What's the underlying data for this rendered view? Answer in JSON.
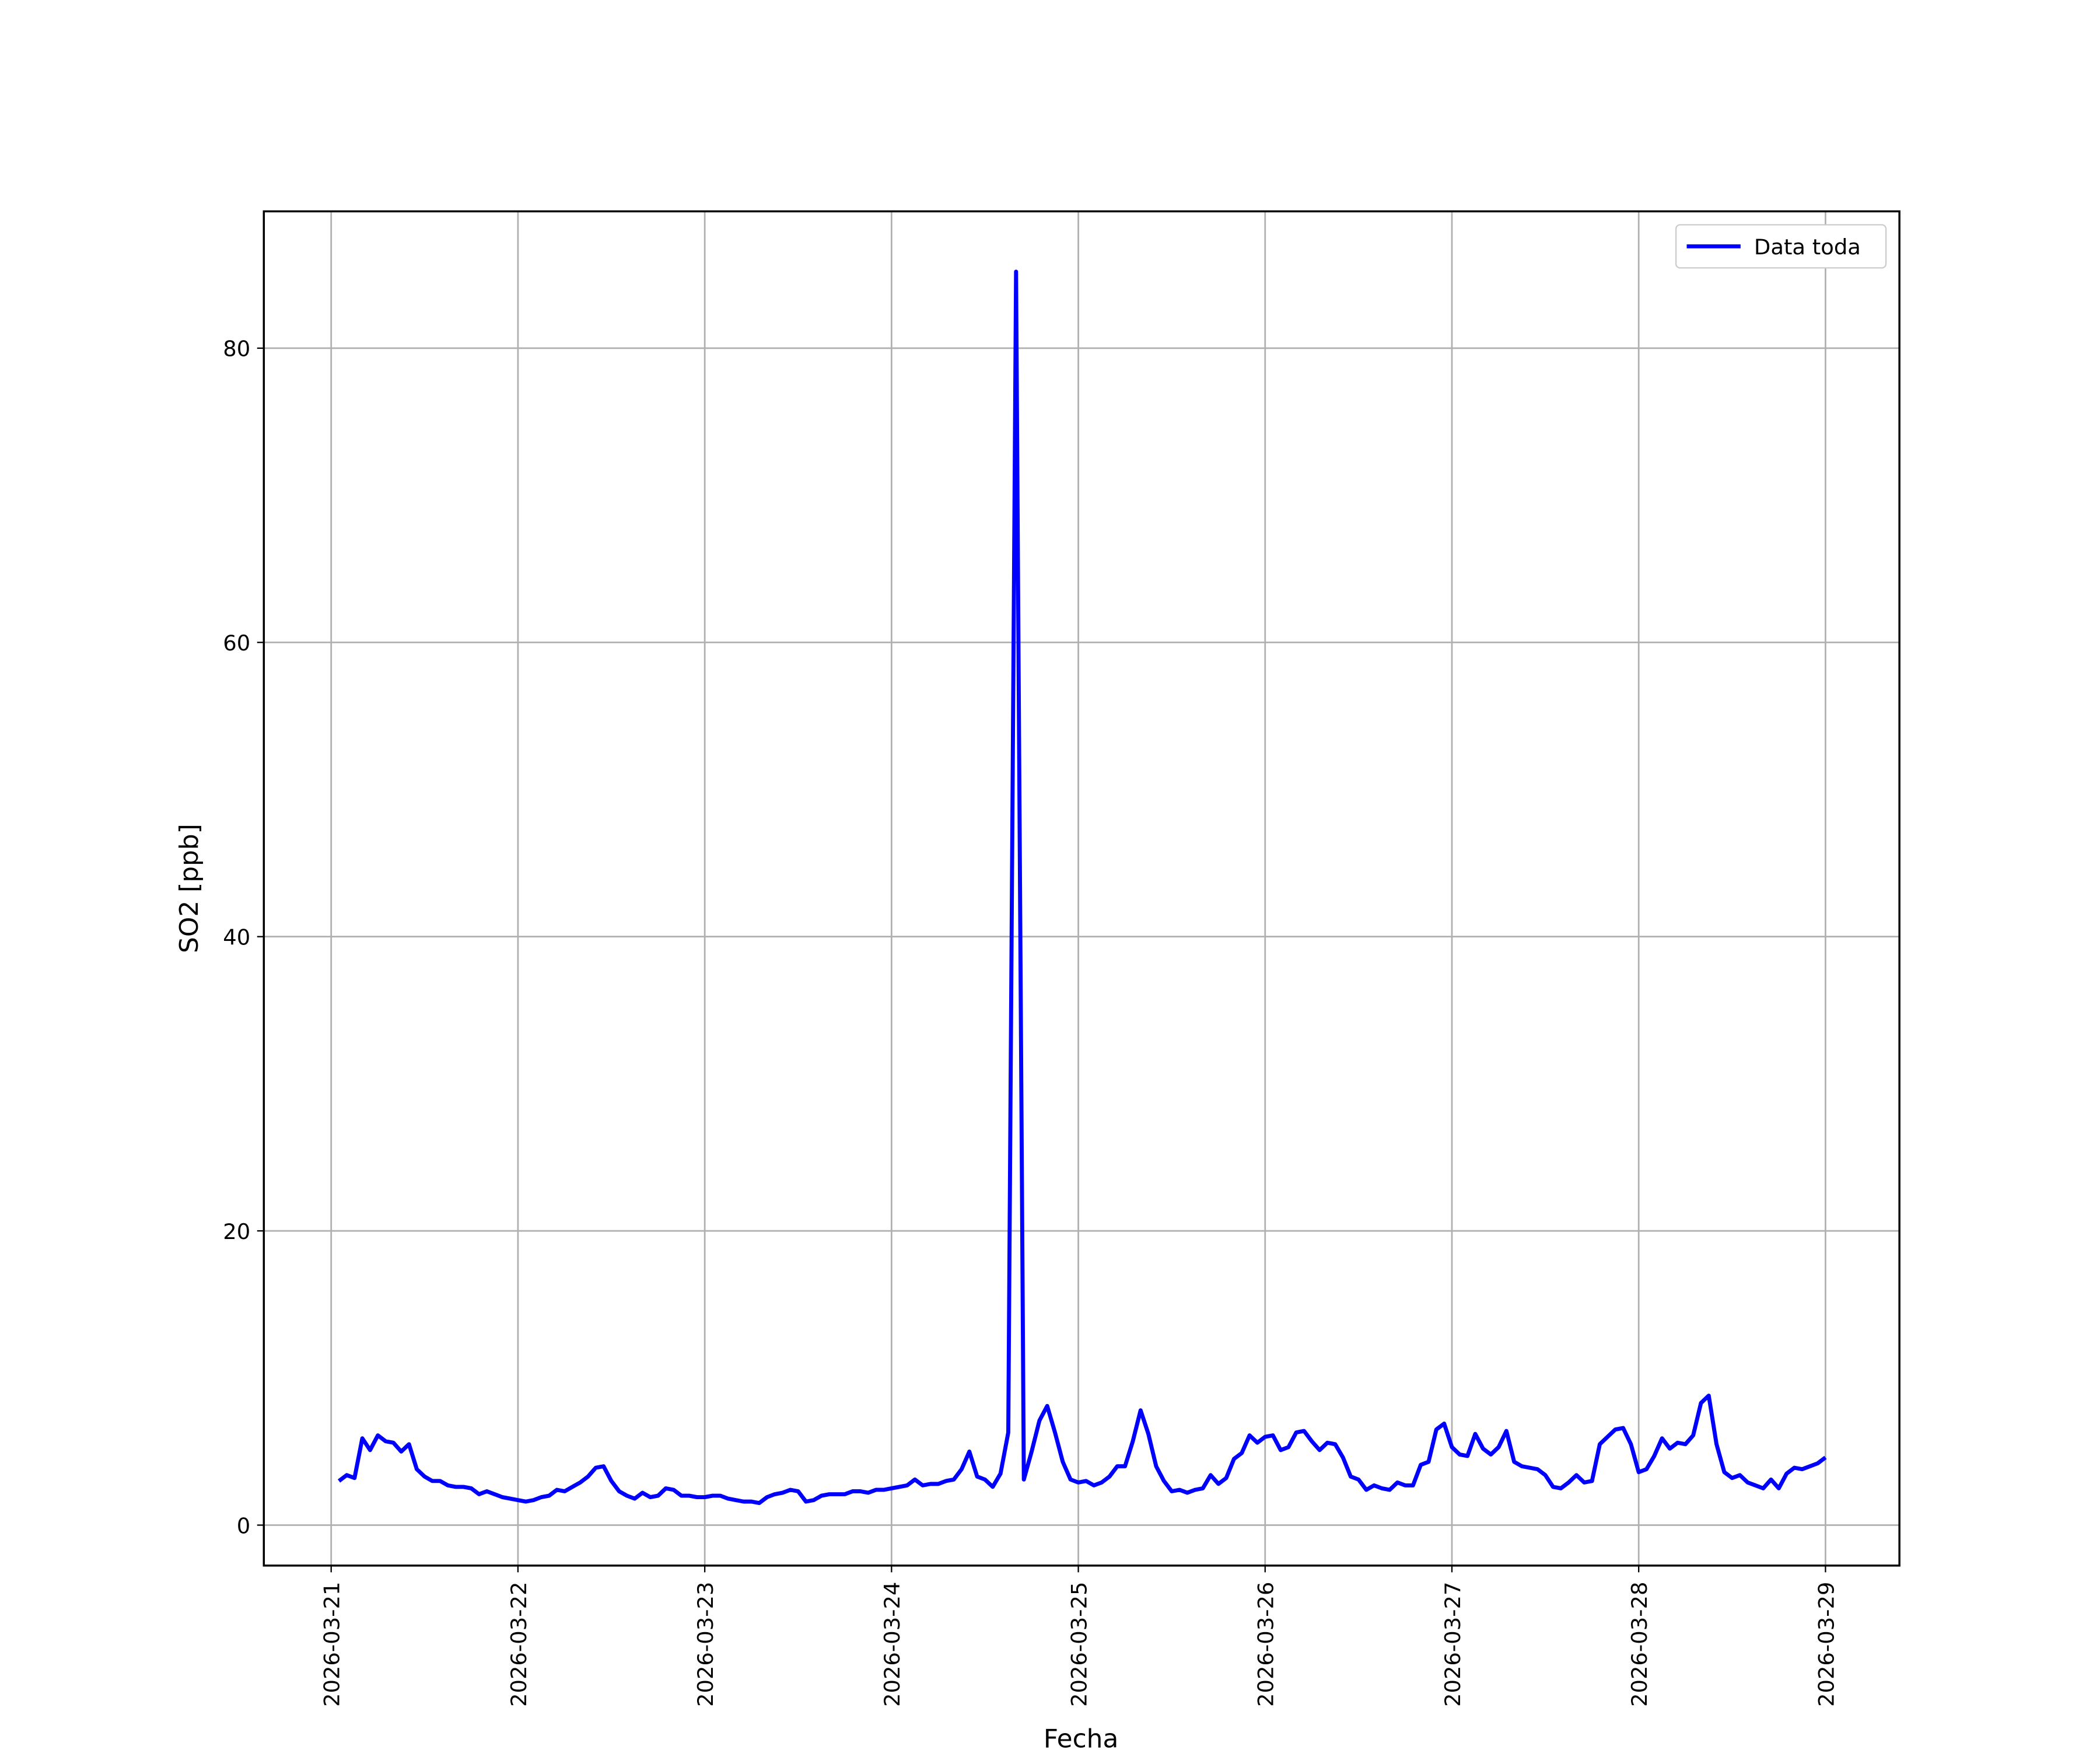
{
  "chart_data": {
    "type": "line",
    "x_label": "Fecha",
    "y_label": "SO2 [ppb]",
    "x": [
      1,
      2,
      3,
      4,
      5,
      6,
      7,
      8,
      9,
      10,
      11,
      12,
      13,
      14,
      15,
      16,
      17,
      18,
      19,
      20,
      21,
      22,
      23,
      24,
      25,
      26,
      27,
      28,
      29,
      30,
      31,
      32,
      33,
      34,
      35,
      36,
      37,
      38,
      39,
      40,
      41,
      42,
      43,
      44,
      45,
      46,
      47,
      48,
      49,
      50,
      51,
      52,
      53,
      54,
      55,
      56,
      57,
      58,
      59,
      60,
      61,
      62,
      63,
      64,
      65,
      66,
      67,
      68,
      69,
      70,
      71,
      72,
      73,
      74,
      75,
      76,
      77,
      78,
      79,
      80,
      81,
      82,
      83,
      84,
      85,
      86,
      87,
      88,
      89,
      90,
      91,
      92,
      93,
      94,
      95,
      96,
      97,
      98,
      99,
      100,
      101,
      102,
      103,
      104,
      105,
      106,
      107,
      108,
      109,
      110,
      111,
      112,
      113,
      114,
      115,
      116,
      117,
      118,
      119,
      120,
      121,
      122,
      123,
      124,
      125,
      126,
      127,
      128,
      129,
      130,
      131,
      132,
      133,
      134,
      135,
      136,
      137,
      138,
      139,
      140,
      141,
      142,
      143,
      144,
      145,
      146,
      147,
      148,
      149,
      150,
      151,
      152,
      153,
      154,
      155,
      156,
      157,
      158,
      159,
      160,
      161,
      162,
      163,
      164,
      165,
      166,
      167,
      168,
      169,
      170,
      171,
      172,
      173,
      174,
      175,
      176,
      177,
      178,
      179,
      180,
      181,
      182,
      183,
      184,
      185,
      186,
      187,
      188,
      189,
      190,
      191,
      192
    ],
    "series": [
      {
        "name": "Data toda",
        "color": "#0000ff",
        "values": [
          3.0,
          3.4,
          3.2,
          5.9,
          5.1,
          6.1,
          5.7,
          5.6,
          5.0,
          5.5,
          3.8,
          3.3,
          3.0,
          3.0,
          2.7,
          2.6,
          2.6,
          2.5,
          2.1,
          2.3,
          2.1,
          1.9,
          1.8,
          1.7,
          1.6,
          1.7,
          1.9,
          2.0,
          2.4,
          2.3,
          2.6,
          2.9,
          3.3,
          3.9,
          4.0,
          3.0,
          2.3,
          2.0,
          1.8,
          2.2,
          1.9,
          2.0,
          2.5,
          2.4,
          2.0,
          2.0,
          1.9,
          1.9,
          2.0,
          2.0,
          1.8,
          1.7,
          1.6,
          1.6,
          1.5,
          1.9,
          2.1,
          2.2,
          2.4,
          2.3,
          1.6,
          1.7,
          2.0,
          2.1,
          2.1,
          2.1,
          2.3,
          2.3,
          2.2,
          2.4,
          2.4,
          2.5,
          2.6,
          2.7,
          3.1,
          2.7,
          2.8,
          2.8,
          3.0,
          3.1,
          3.8,
          5.0,
          3.3,
          3.1,
          2.6,
          3.5,
          6.3,
          85.2,
          3.1,
          5.0,
          7.1,
          8.1,
          6.3,
          4.3,
          3.1,
          2.9,
          3.0,
          2.7,
          2.9,
          3.3,
          4.0,
          4.0,
          5.7,
          7.8,
          6.2,
          4.0,
          3.0,
          2.3,
          2.4,
          2.2,
          2.4,
          2.5,
          3.4,
          2.8,
          3.2,
          4.5,
          4.9,
          6.1,
          5.6,
          6.0,
          6.1,
          5.1,
          5.3,
          6.3,
          6.4,
          5.7,
          5.1,
          5.6,
          5.5,
          4.6,
          3.3,
          3.1,
          2.4,
          2.7,
          2.5,
          2.4,
          2.9,
          2.7,
          2.7,
          4.1,
          4.3,
          6.5,
          6.9,
          5.3,
          4.8,
          4.7,
          6.2,
          5.2,
          4.8,
          5.3,
          6.4,
          4.3,
          4.0,
          3.9,
          3.8,
          3.4,
          2.6,
          2.5,
          2.9,
          3.4,
          2.9,
          3.0,
          5.5,
          6.0,
          6.5,
          6.6,
          5.5,
          3.6,
          3.8,
          4.7,
          5.9,
          5.2,
          5.6,
          5.5,
          6.1,
          8.3,
          8.8,
          5.5,
          3.6,
          3.2,
          3.4,
          2.9,
          2.7,
          2.5,
          3.1,
          2.5,
          3.5,
          3.9,
          3.8,
          4.0,
          4.2,
          4.6
        ]
      }
    ],
    "xlim": [
      -8.65,
      201.5
    ],
    "xticks": [
      {
        "value": 0,
        "label": "2026-03-21"
      },
      {
        "value": 24,
        "label": "2026-03-22"
      },
      {
        "value": 48,
        "label": "2026-03-23"
      },
      {
        "value": 72,
        "label": "2026-03-24"
      },
      {
        "value": 96,
        "label": "2026-03-25"
      },
      {
        "value": 120,
        "label": "2026-03-26"
      },
      {
        "value": 144,
        "label": "2026-03-27"
      },
      {
        "value": 168,
        "label": "2026-03-28"
      },
      {
        "value": 192,
        "label": "2026-03-29"
      }
    ],
    "ylim": [
      -2.75,
      89.3
    ],
    "yticks": [
      0,
      20,
      40,
      60,
      80
    ],
    "grid": true,
    "legend": "upper right"
  }
}
